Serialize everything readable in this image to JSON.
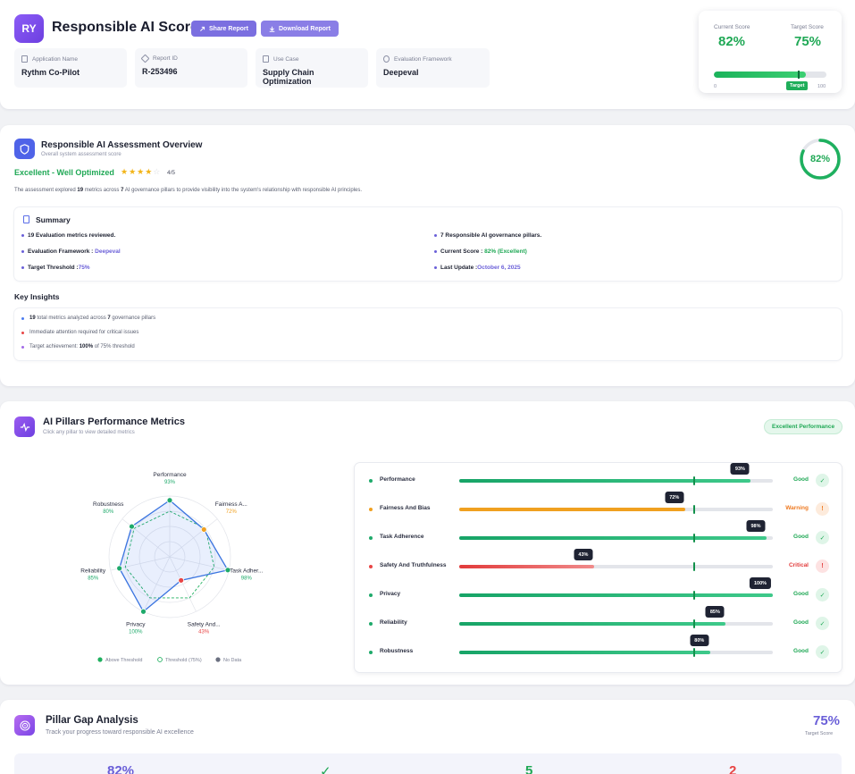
{
  "header": {
    "logo_text": "RY",
    "title": "Responsible AI Score",
    "share_label": "Share Report",
    "download_label": "Download Report",
    "meta": [
      {
        "label": "Application Name",
        "value": "Rythm Co-Pilot"
      },
      {
        "label": "Report ID",
        "value": "R-253496"
      },
      {
        "label": "Use Case",
        "value": "Supply Chain Optimization"
      },
      {
        "label": "Evaluation Framework",
        "value": "Deepeval"
      }
    ],
    "score": {
      "current_label": "Current Score",
      "current_value": "82%",
      "target_label": "Target Score",
      "target_value": "75%",
      "progress": 0.82,
      "target": 0.75,
      "target_badge": "Target",
      "min": "0",
      "max": "100"
    }
  },
  "overview": {
    "title": "Responsible AI Assessment Overview",
    "subtitle": "Overall system assessment score",
    "status": "Excellent - Well Optimized",
    "stars_on": "★★★★",
    "stars_off": "☆",
    "rating": "4/5",
    "score": "82%",
    "score_value": 0.82,
    "desc_1": "The assessment explored ",
    "desc_metrics": "19",
    "desc_2": " metrics across ",
    "desc_pillars": "7",
    "desc_3": " AI governance pillars to provide visibility into the system's relationship with responsible AI principles.",
    "summary": {
      "title": "Summary",
      "metrics_reviewed": "19 Evaluation metrics reviewed.",
      "pillars": "7 Responsible AI governance pillars.",
      "framework_label": "Evaluation Framework : ",
      "framework_value": "Deepeval",
      "current_label": "Current Score : ",
      "current_value": "82% (Excellent)",
      "threshold_label": "Target Threshold :",
      "threshold_value": "75%",
      "update_label": "Last Update :",
      "update_value": "October 6, 2025"
    },
    "insights_title": "Key Insights",
    "insights": {
      "i1_a": "19",
      "i1_b": " total metrics analyzed across ",
      "i1_c": "7",
      "i1_d": " governance pillars",
      "i2": "Immediate attention required for critical issues",
      "i3_a": "Target achievement: ",
      "i3_b": "100%",
      "i3_c": " of 75% threshold"
    },
    "colors": {
      "good": "#1fa855",
      "blue": "#4c7cf0",
      "red": "#e84545",
      "purple": "#a36be8"
    }
  },
  "pillars": {
    "title": "AI Pillars Performance Metrics",
    "subtitle": "Click any pillar to view detailed metrics",
    "badge": "Excellent Performance",
    "threshold": 75,
    "legend": {
      "above": "Above Threshold",
      "threshold": "Threshold (75%)",
      "nodata": "No Data"
    },
    "items": [
      {
        "name": "Performance",
        "short": "Performance",
        "value": 93,
        "label": "93%",
        "status": "Good",
        "color": "#1faa6b"
      },
      {
        "name": "Fairness And Bias",
        "short": "Fairness A...",
        "value": 72,
        "label": "72%",
        "status": "Warning",
        "color": "#f0a020"
      },
      {
        "name": "Task Adherence",
        "short": "Task Adher...",
        "value": 98,
        "label": "98%",
        "status": "Good",
        "color": "#1faa6b"
      },
      {
        "name": "Safety And Truthfulness",
        "short": "Safety And...",
        "value": 43,
        "label": "43%",
        "status": "Critical",
        "color": "#e84545"
      },
      {
        "name": "Privacy",
        "short": "Privacy",
        "value": 100,
        "label": "100%",
        "status": "Good",
        "color": "#1faa6b"
      },
      {
        "name": "Reliability",
        "short": "Reliability",
        "value": 85,
        "label": "85%",
        "status": "Good",
        "color": "#1faa6b"
      },
      {
        "name": "Robustness",
        "short": "Robustness",
        "value": 80,
        "label": "80%",
        "status": "Good",
        "color": "#1faa6b"
      }
    ]
  },
  "gap": {
    "title": "Pillar Gap Analysis",
    "subtitle": "Track your progress toward responsible AI excellence",
    "target_value": "75%",
    "target_label": "Target Score",
    "stats": {
      "current": "82%",
      "check": "✓",
      "passing": "5",
      "failing": "2"
    }
  }
}
